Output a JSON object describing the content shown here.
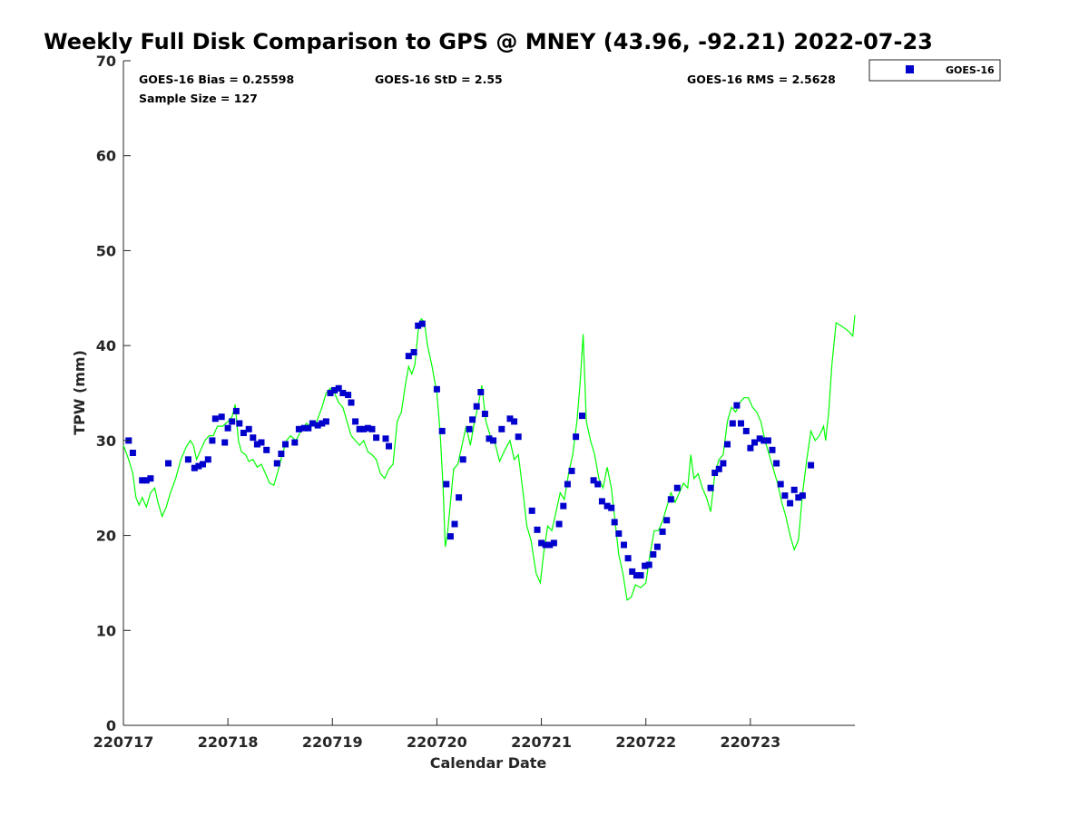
{
  "chart_data": {
    "type": "scatter",
    "title": "Weekly Full Disk Comparison to GPS @ MNEY (43.96, -92.21) 2022-07-23",
    "xlabel": "Calendar Date",
    "ylabel": "TPW (mm)",
    "xlim": [
      0,
      7
    ],
    "ylim": [
      0,
      70
    ],
    "yticks": [
      0,
      10,
      20,
      30,
      40,
      50,
      60,
      70
    ],
    "xticks": [
      {
        "value": 0,
        "label": "220717"
      },
      {
        "value": 1,
        "label": "220718"
      },
      {
        "value": 2,
        "label": "220719"
      },
      {
        "value": 3,
        "label": "220720"
      },
      {
        "value": 4,
        "label": "220721"
      },
      {
        "value": 5,
        "label": "220722"
      },
      {
        "value": 6,
        "label": "220723"
      }
    ],
    "grid": false,
    "legend": {
      "position": "top-right",
      "entries": [
        "GOES-16"
      ]
    },
    "stats": {
      "bias": "GOES-16 Bias = 0.25598",
      "std": "GOES-16 StD = 2.55",
      "rms": "GOES-16 RMS = 2.5628",
      "sample": "Sample Size = 127"
    },
    "series": [
      {
        "name": "GOES-16",
        "kind": "scatter",
        "color": "#0000cc",
        "points": [
          [
            0.05,
            30.0
          ],
          [
            0.09,
            28.7
          ],
          [
            0.18,
            25.8
          ],
          [
            0.22,
            25.8
          ],
          [
            0.26,
            26.0
          ],
          [
            0.43,
            27.6
          ],
          [
            0.62,
            28.0
          ],
          [
            0.68,
            27.1
          ],
          [
            0.72,
            27.3
          ],
          [
            0.76,
            27.5
          ],
          [
            0.81,
            28.0
          ],
          [
            0.85,
            30.0
          ],
          [
            0.88,
            32.3
          ],
          [
            0.94,
            32.5
          ],
          [
            0.97,
            29.8
          ],
          [
            1.0,
            31.3
          ],
          [
            1.04,
            32.0
          ],
          [
            1.08,
            33.1
          ],
          [
            1.11,
            31.8
          ],
          [
            1.15,
            30.8
          ],
          [
            1.2,
            31.2
          ],
          [
            1.24,
            30.3
          ],
          [
            1.28,
            29.6
          ],
          [
            1.32,
            29.8
          ],
          [
            1.37,
            29.0
          ],
          [
            1.47,
            27.6
          ],
          [
            1.51,
            28.6
          ],
          [
            1.55,
            29.6
          ],
          [
            1.64,
            29.8
          ],
          [
            1.68,
            31.2
          ],
          [
            1.73,
            31.3
          ],
          [
            1.77,
            31.3
          ],
          [
            1.81,
            31.8
          ],
          [
            1.86,
            31.6
          ],
          [
            1.9,
            31.8
          ],
          [
            1.94,
            32.0
          ],
          [
            1.98,
            35.0
          ],
          [
            2.02,
            35.3
          ],
          [
            2.06,
            35.5
          ],
          [
            2.1,
            35.0
          ],
          [
            2.15,
            34.8
          ],
          [
            2.18,
            34.0
          ],
          [
            2.22,
            32.0
          ],
          [
            2.26,
            31.2
          ],
          [
            2.3,
            31.2
          ],
          [
            2.34,
            31.3
          ],
          [
            2.38,
            31.2
          ],
          [
            2.42,
            30.3
          ],
          [
            2.51,
            30.2
          ],
          [
            2.54,
            29.4
          ],
          [
            2.73,
            38.9
          ],
          [
            2.78,
            39.3
          ],
          [
            2.82,
            42.1
          ],
          [
            2.86,
            42.3
          ],
          [
            3.0,
            35.4
          ],
          [
            3.05,
            31.0
          ],
          [
            3.09,
            25.4
          ],
          [
            3.13,
            19.9
          ],
          [
            3.17,
            21.2
          ],
          [
            3.21,
            24.0
          ],
          [
            3.25,
            28.0
          ],
          [
            3.31,
            31.2
          ],
          [
            3.34,
            32.2
          ],
          [
            3.38,
            33.6
          ],
          [
            3.42,
            35.1
          ],
          [
            3.46,
            32.8
          ],
          [
            3.5,
            30.2
          ],
          [
            3.54,
            30.0
          ],
          [
            3.62,
            31.2
          ],
          [
            3.7,
            32.3
          ],
          [
            3.74,
            32.0
          ],
          [
            3.78,
            30.4
          ],
          [
            3.91,
            22.6
          ],
          [
            3.96,
            20.6
          ],
          [
            4.0,
            19.2
          ],
          [
            4.04,
            19.0
          ],
          [
            4.08,
            19.0
          ],
          [
            4.12,
            19.2
          ],
          [
            4.17,
            21.2
          ],
          [
            4.21,
            23.1
          ],
          [
            4.25,
            25.4
          ],
          [
            4.29,
            26.8
          ],
          [
            4.33,
            30.4
          ],
          [
            4.39,
            32.6
          ],
          [
            4.5,
            25.8
          ],
          [
            4.54,
            25.4
          ],
          [
            4.58,
            23.6
          ],
          [
            4.63,
            23.1
          ],
          [
            4.67,
            22.9
          ],
          [
            4.7,
            21.4
          ],
          [
            4.74,
            20.2
          ],
          [
            4.79,
            19.0
          ],
          [
            4.83,
            17.6
          ],
          [
            4.87,
            16.2
          ],
          [
            4.91,
            15.8
          ],
          [
            4.95,
            15.8
          ],
          [
            4.99,
            16.8
          ],
          [
            5.03,
            16.9
          ],
          [
            5.07,
            18.0
          ],
          [
            5.11,
            18.8
          ],
          [
            5.16,
            20.4
          ],
          [
            5.2,
            21.6
          ],
          [
            5.24,
            23.8
          ],
          [
            5.3,
            25.0
          ],
          [
            5.62,
            25.0
          ],
          [
            5.66,
            26.6
          ],
          [
            5.7,
            27.0
          ],
          [
            5.74,
            27.6
          ],
          [
            5.78,
            29.6
          ],
          [
            5.83,
            31.8
          ],
          [
            5.87,
            33.7
          ],
          [
            5.91,
            31.8
          ],
          [
            5.96,
            31.0
          ],
          [
            6.0,
            29.2
          ],
          [
            6.04,
            29.8
          ],
          [
            6.09,
            30.2
          ],
          [
            6.13,
            30.0
          ],
          [
            6.17,
            30.0
          ],
          [
            6.21,
            29.0
          ],
          [
            6.25,
            27.6
          ],
          [
            6.29,
            25.4
          ],
          [
            6.33,
            24.2
          ],
          [
            6.38,
            23.4
          ],
          [
            6.42,
            24.8
          ],
          [
            6.46,
            24.0
          ],
          [
            6.5,
            24.2
          ],
          [
            6.58,
            27.4
          ]
        ]
      },
      {
        "name": "GPS",
        "kind": "line",
        "color": "#00ff00",
        "points": [
          [
            0.0,
            29.5
          ],
          [
            0.05,
            28.0
          ],
          [
            0.09,
            26.5
          ],
          [
            0.12,
            24.0
          ],
          [
            0.15,
            23.2
          ],
          [
            0.18,
            24.0
          ],
          [
            0.22,
            23.0
          ],
          [
            0.26,
            24.5
          ],
          [
            0.3,
            25.0
          ],
          [
            0.33,
            23.5
          ],
          [
            0.37,
            22.0
          ],
          [
            0.41,
            23.0
          ],
          [
            0.45,
            24.5
          ],
          [
            0.5,
            26.0
          ],
          [
            0.55,
            28.0
          ],
          [
            0.6,
            29.3
          ],
          [
            0.64,
            30.0
          ],
          [
            0.67,
            29.5
          ],
          [
            0.7,
            28.0
          ],
          [
            0.74,
            29.0
          ],
          [
            0.78,
            30.0
          ],
          [
            0.82,
            30.5
          ],
          [
            0.86,
            30.5
          ],
          [
            0.9,
            31.5
          ],
          [
            0.95,
            31.5
          ],
          [
            1.0,
            32.0
          ],
          [
            1.04,
            32.5
          ],
          [
            1.07,
            33.8
          ],
          [
            1.1,
            30.0
          ],
          [
            1.13,
            28.8
          ],
          [
            1.17,
            28.5
          ],
          [
            1.2,
            27.8
          ],
          [
            1.24,
            28.0
          ],
          [
            1.28,
            27.2
          ],
          [
            1.32,
            27.5
          ],
          [
            1.36,
            26.5
          ],
          [
            1.4,
            25.5
          ],
          [
            1.44,
            25.3
          ],
          [
            1.48,
            26.8
          ],
          [
            1.52,
            28.5
          ],
          [
            1.56,
            30.0
          ],
          [
            1.6,
            30.5
          ],
          [
            1.65,
            30.0
          ],
          [
            1.7,
            31.0
          ],
          [
            1.75,
            31.8
          ],
          [
            1.8,
            31.5
          ],
          [
            1.85,
            32.0
          ],
          [
            1.9,
            33.5
          ],
          [
            1.94,
            35.0
          ],
          [
            1.98,
            35.5
          ],
          [
            2.02,
            35.0
          ],
          [
            2.06,
            34.0
          ],
          [
            2.1,
            33.5
          ],
          [
            2.14,
            32.0
          ],
          [
            2.18,
            30.5
          ],
          [
            2.22,
            30.0
          ],
          [
            2.26,
            29.5
          ],
          [
            2.3,
            30.0
          ],
          [
            2.34,
            28.8
          ],
          [
            2.38,
            28.5
          ],
          [
            2.42,
            28.0
          ],
          [
            2.46,
            26.5
          ],
          [
            2.5,
            26.0
          ],
          [
            2.54,
            27.0
          ],
          [
            2.58,
            27.5
          ],
          [
            2.62,
            32.0
          ],
          [
            2.66,
            33.0
          ],
          [
            2.7,
            36.0
          ],
          [
            2.73,
            37.8
          ],
          [
            2.76,
            37.0
          ],
          [
            2.79,
            38.0
          ],
          [
            2.82,
            41.5
          ],
          [
            2.85,
            42.8
          ],
          [
            2.88,
            42.5
          ],
          [
            2.91,
            40.0
          ],
          [
            2.95,
            38.0
          ],
          [
            3.0,
            35.0
          ],
          [
            3.03,
            31.0
          ],
          [
            3.06,
            25.0
          ],
          [
            3.08,
            18.8
          ],
          [
            3.1,
            20.0
          ],
          [
            3.13,
            23.5
          ],
          [
            3.16,
            27.0
          ],
          [
            3.2,
            27.5
          ],
          [
            3.24,
            29.5
          ],
          [
            3.28,
            31.5
          ],
          [
            3.32,
            29.5
          ],
          [
            3.36,
            32.0
          ],
          [
            3.4,
            34.0
          ],
          [
            3.43,
            35.8
          ],
          [
            3.47,
            32.0
          ],
          [
            3.51,
            30.5
          ],
          [
            3.55,
            30.0
          ],
          [
            3.6,
            27.8
          ],
          [
            3.65,
            29.0
          ],
          [
            3.7,
            30.0
          ],
          [
            3.74,
            28.0
          ],
          [
            3.78,
            28.5
          ],
          [
            3.82,
            25.0
          ],
          [
            3.86,
            21.0
          ],
          [
            3.9,
            19.5
          ],
          [
            3.95,
            16.0
          ],
          [
            3.99,
            15.0
          ],
          [
            4.02,
            18.0
          ],
          [
            4.06,
            21.0
          ],
          [
            4.1,
            20.5
          ],
          [
            4.14,
            22.5
          ],
          [
            4.18,
            24.5
          ],
          [
            4.22,
            23.8
          ],
          [
            4.26,
            26.5
          ],
          [
            4.3,
            28.5
          ],
          [
            4.34,
            32.0
          ],
          [
            4.37,
            36.0
          ],
          [
            4.4,
            41.2
          ],
          [
            4.43,
            32.0
          ],
          [
            4.47,
            30.0
          ],
          [
            4.51,
            28.5
          ],
          [
            4.55,
            26.0
          ],
          [
            4.59,
            25.0
          ],
          [
            4.63,
            27.2
          ],
          [
            4.67,
            25.0
          ],
          [
            4.7,
            22.0
          ],
          [
            4.74,
            18.0
          ],
          [
            4.78,
            16.0
          ],
          [
            4.82,
            13.2
          ],
          [
            4.86,
            13.5
          ],
          [
            4.9,
            14.8
          ],
          [
            4.95,
            14.5
          ],
          [
            5.0,
            15.0
          ],
          [
            5.04,
            18.0
          ],
          [
            5.08,
            20.5
          ],
          [
            5.12,
            20.5
          ],
          [
            5.16,
            21.5
          ],
          [
            5.2,
            23.0
          ],
          [
            5.24,
            24.5
          ],
          [
            5.28,
            23.5
          ],
          [
            5.32,
            24.5
          ],
          [
            5.36,
            25.5
          ],
          [
            5.4,
            25.0
          ],
          [
            5.43,
            28.5
          ],
          [
            5.46,
            26.0
          ],
          [
            5.5,
            26.5
          ],
          [
            5.54,
            25.0
          ],
          [
            5.58,
            24.0
          ],
          [
            5.62,
            22.5
          ],
          [
            5.66,
            26.5
          ],
          [
            5.7,
            28.0
          ],
          [
            5.74,
            28.5
          ],
          [
            5.78,
            32.0
          ],
          [
            5.82,
            33.5
          ],
          [
            5.86,
            33.0
          ],
          [
            5.9,
            34.0
          ],
          [
            5.94,
            34.5
          ],
          [
            5.98,
            34.5
          ],
          [
            6.02,
            33.5
          ],
          [
            6.06,
            33.0
          ],
          [
            6.1,
            32.0
          ],
          [
            6.14,
            30.0
          ],
          [
            6.18,
            28.5
          ],
          [
            6.22,
            27.0
          ],
          [
            6.26,
            25.5
          ],
          [
            6.3,
            23.5
          ],
          [
            6.34,
            22.0
          ],
          [
            6.38,
            20.0
          ],
          [
            6.42,
            18.5
          ],
          [
            6.46,
            19.5
          ],
          [
            6.5,
            24.5
          ],
          [
            6.54,
            28.0
          ],
          [
            6.58,
            31.0
          ],
          [
            6.62,
            30.0
          ],
          [
            6.66,
            30.5
          ],
          [
            6.7,
            31.5
          ],
          [
            6.72,
            30.0
          ],
          [
            6.75,
            33.0
          ],
          [
            6.78,
            38.0
          ],
          [
            6.82,
            42.4
          ],
          [
            6.88,
            42.0
          ],
          [
            6.94,
            41.5
          ],
          [
            6.98,
            41.0
          ],
          [
            7.0,
            43.2
          ]
        ]
      }
    ]
  }
}
